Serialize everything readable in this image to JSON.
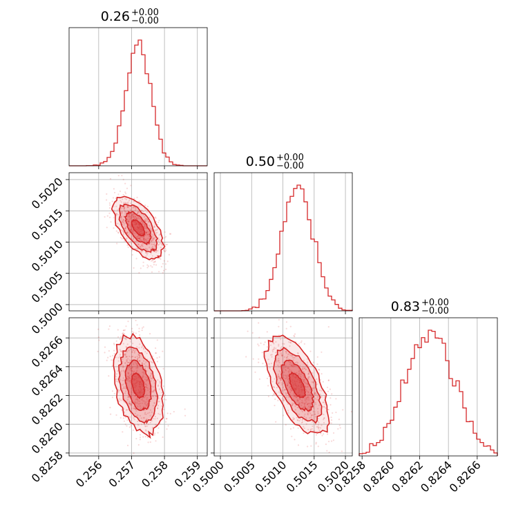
{
  "chart_data": {
    "type": "corner",
    "color": "#d62728",
    "grid": true,
    "parameters": [
      {
        "title_value": "0.26",
        "title_plus": "+0.00",
        "title_minus": "−0.00",
        "range": [
          0.2551,
          0.2593
        ],
        "ticks": [
          0.256,
          0.257,
          0.258,
          0.259
        ],
        "tick_labels": [
          "0.256",
          "0.257",
          "0.258",
          "0.259"
        ],
        "median": 0.2572,
        "sigma": 0.00038
      },
      {
        "title_value": "0.50",
        "title_plus": "+0.00",
        "title_minus": "−0.00",
        "range": [
          0.4999,
          0.50211
        ],
        "ticks": [
          0.5,
          0.5005,
          0.501,
          0.5015,
          0.502
        ],
        "tick_labels": [
          "0.5000",
          "0.5005",
          "0.5010",
          "0.5015",
          "0.5020"
        ],
        "median": 0.50123,
        "sigma": 0.00025
      },
      {
        "title_value": "0.83",
        "title_plus": "+0.00",
        "title_minus": "−0.00",
        "range": [
          0.82578,
          0.82674
        ],
        "ticks": [
          0.8258,
          0.826,
          0.8262,
          0.8264,
          0.8266
        ],
        "tick_labels": [
          "0.8258",
          "0.8260",
          "0.8262",
          "0.8264",
          "0.8266"
        ],
        "median": 0.82627,
        "sigma": 0.00017
      }
    ],
    "correlations": [
      {
        "x": 0,
        "y": 1,
        "rho": -0.6
      },
      {
        "x": 0,
        "y": 2,
        "rho": -0.35
      },
      {
        "x": 1,
        "y": 2,
        "rho": -0.6
      }
    ],
    "contour_levels_sigma": [
      0.5,
      1.0,
      1.5,
      2.0
    ]
  }
}
